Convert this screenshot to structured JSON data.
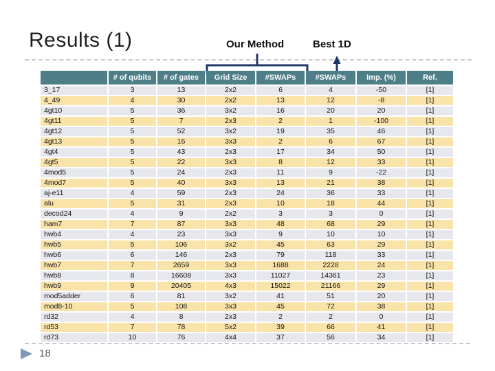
{
  "slide": {
    "title": "Results (1)",
    "page_number": "18"
  },
  "annotations": {
    "our_method_label": "Our Method",
    "best_1d_label": "Best 1D"
  },
  "colors": {
    "header_bg": "#4e7e87",
    "row_gray": "#e7e8ee",
    "row_yellow": "#fae3a8",
    "annotation_navy": "#1f3864",
    "dashed_line": "#c6c6c6",
    "page_triangle": "#7e99b4"
  },
  "table": {
    "headers": [
      "",
      "# of qubits",
      "# of gates",
      "Grid Size",
      "#SWAPs",
      "#SWAPs",
      "Imp. (%)",
      "Ref."
    ],
    "rows": [
      [
        "3_17",
        3,
        13,
        "2x2",
        6,
        4,
        -50,
        "[1]"
      ],
      [
        "4_49",
        4,
        30,
        "2x2",
        13,
        12,
        -8,
        "[1]"
      ],
      [
        "4gt10",
        5,
        36,
        "3x2",
        16,
        20,
        20,
        "[1]"
      ],
      [
        "4gt11",
        5,
        7,
        "2x3",
        2,
        1,
        -100,
        "[1]"
      ],
      [
        "4gt12",
        5,
        52,
        "3x2",
        19,
        35,
        46,
        "[1]"
      ],
      [
        "4gt13",
        5,
        16,
        "3x3",
        2,
        6,
        67,
        "[1]"
      ],
      [
        "4gt4",
        5,
        43,
        "2x3",
        17,
        34,
        50,
        "[1]"
      ],
      [
        "4gt5",
        5,
        22,
        "3x3",
        8,
        12,
        33,
        "[1]"
      ],
      [
        "4mod5",
        5,
        24,
        "2x3",
        11,
        9,
        -22,
        "[1]"
      ],
      [
        "4mod7",
        5,
        40,
        "3x3",
        13,
        21,
        38,
        "[1]"
      ],
      [
        "aj-e11",
        4,
        59,
        "2x3",
        24,
        36,
        33,
        "[1]"
      ],
      [
        "alu",
        5,
        31,
        "2x3",
        10,
        18,
        44,
        "[1]"
      ],
      [
        "decod24",
        4,
        9,
        "2x2",
        3,
        3,
        0,
        "[1]"
      ],
      [
        "ham7",
        7,
        87,
        "3x3",
        48,
        68,
        29,
        "[1]"
      ],
      [
        "hwb4",
        4,
        23,
        "3x3",
        9,
        10,
        10,
        "[1]"
      ],
      [
        "hwb5",
        5,
        106,
        "3x2",
        45,
        63,
        29,
        "[1]"
      ],
      [
        "hwb6",
        6,
        146,
        "2x3",
        79,
        118,
        33,
        "[1]"
      ],
      [
        "hwb7",
        7,
        2659,
        "3x3",
        1688,
        2228,
        24,
        "[1]"
      ],
      [
        "hwb8",
        8,
        16608,
        "3x3",
        11027,
        14361,
        23,
        "[1]"
      ],
      [
        "hwb9",
        9,
        20405,
        "4x3",
        15022,
        21166,
        29,
        "[1]"
      ],
      [
        "mod5adder",
        6,
        81,
        "3x2",
        41,
        51,
        20,
        "[1]"
      ],
      [
        "mod8-10",
        5,
        108,
        "3x3",
        45,
        72,
        38,
        "[1]"
      ],
      [
        "rd32",
        4,
        8,
        "2x3",
        2,
        2,
        0,
        "[1]"
      ],
      [
        "rd53",
        7,
        78,
        "5x2",
        39,
        66,
        41,
        "[1]"
      ],
      [
        "rd73",
        10,
        76,
        "4x4",
        37,
        56,
        34,
        "[1]"
      ]
    ]
  }
}
